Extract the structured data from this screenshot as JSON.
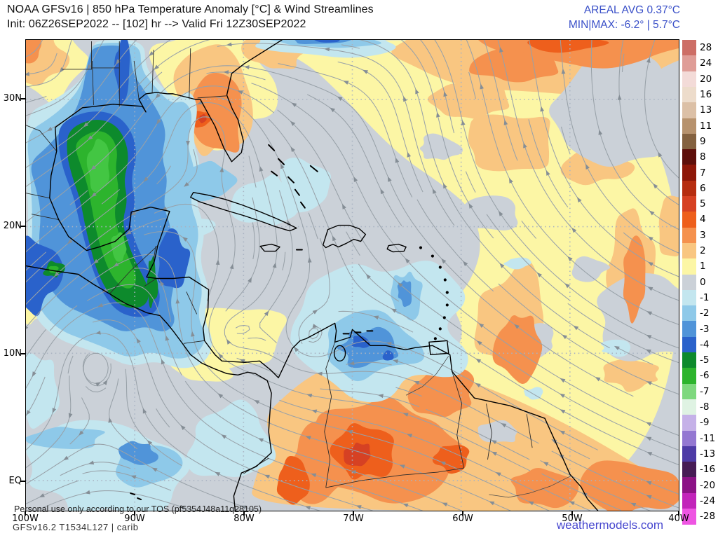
{
  "header": {
    "title": "NOAA GFSv16 | 850 hPa Temperature Anomaly [°C] & Wind Streamlines",
    "init_line": "Init: 06Z26SEP2022 -- [102] hr --> Valid Fri 12Z30SEP2022",
    "areal_avg": "AREAL AVG 0.37°C",
    "min_max": "MIN|MAX: -6.2° | 5.7°C",
    "stats_color": "#3a50c8"
  },
  "map": {
    "x_tick_labels": [
      "100W",
      "90W",
      "80W",
      "70W",
      "60W",
      "50W",
      "40W"
    ],
    "y_tick_labels": [
      "30N",
      "20N",
      "10N",
      "EQ"
    ],
    "watermark": "Personal use only according to our TOS (pf5354J48a11q28105)",
    "sea_neutral_color": "#cbd1d8",
    "coastline_color": "#000000",
    "border_color": "#2a2a2a",
    "streamline_color": "#98a1a8",
    "arrow_color": "#858e96",
    "gridline_color": "#a9b3c2",
    "bright_green_accent": "#43c643"
  },
  "colorbar": {
    "labels": [
      "28",
      "24",
      "20",
      "16",
      "13",
      "11",
      "9",
      "8",
      "7",
      "6",
      "5",
      "4",
      "3",
      "2",
      "1",
      "0",
      "-1",
      "-2",
      "-3",
      "-4",
      "-5",
      "-6",
      "-7",
      "-8",
      "-9",
      "-11",
      "-13",
      "-16",
      "-20",
      "-24",
      "-28"
    ],
    "colors": [
      "#cd6e66",
      "#df9d97",
      "#f3dbd8",
      "#eddccb",
      "#dcc0a6",
      "#b7926d",
      "#84613f",
      "#5e0f0a",
      "#8e1708",
      "#b62d10",
      "#d64123",
      "#ee5f1c",
      "#f5914e",
      "#f9c681",
      "#fcf6a5",
      "#cbd1d8",
      "#c3e6ef",
      "#8ec9e9",
      "#5094d9",
      "#2a62cb",
      "#0d8a2c",
      "#2db42d",
      "#7ed87e",
      "#dff3e3",
      "#c5b1e8",
      "#9478d2",
      "#4e3ba6",
      "#471c55",
      "#8c1286",
      "#c224ba",
      "#ee55e2"
    ]
  },
  "footer": {
    "model_label": "GFSv16.2 T1534L127 | carib",
    "site_label": "weathermodels.com",
    "site_color": "#4747cf"
  }
}
